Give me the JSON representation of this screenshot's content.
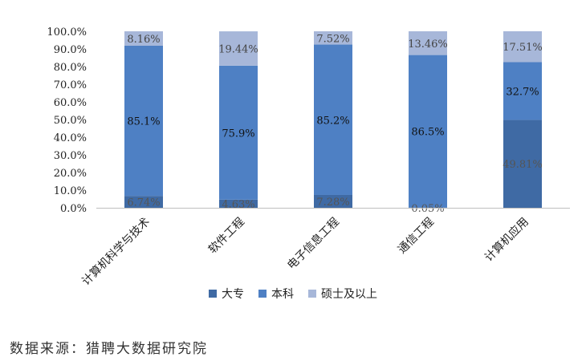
{
  "chart_data": {
    "type": "bar",
    "stacked": true,
    "categories": [
      "计算机科学与技术",
      "软件工程",
      "电子信息工程",
      "通信工程",
      "计算机应用"
    ],
    "series": [
      {
        "name": "大专",
        "values": [
          6.74,
          4.63,
          7.28,
          0.05,
          49.81
        ],
        "labels": [
          "6.74%",
          "4.63%",
          "7.28%",
          "0.05%",
          "49.81%"
        ],
        "color": "#3f6aa4",
        "label_color": "#555555"
      },
      {
        "name": "本科",
        "values": [
          85.1,
          75.9,
          85.2,
          86.5,
          32.7
        ],
        "labels": [
          "85.1%",
          "75.9%",
          "85.2%",
          "86.5%",
          "32.7%"
        ],
        "color": "#4e80c4",
        "label_color": "#111111"
      },
      {
        "name": "硕士及以上",
        "values": [
          8.16,
          19.44,
          7.52,
          13.46,
          17.51
        ],
        "labels": [
          "8.16%",
          "19.44%",
          "7.52%",
          "13.46%",
          "17.51%"
        ],
        "color": "#a7b7d9",
        "label_color": "#444444"
      }
    ],
    "y_ticks": [
      "0.0%",
      "10.0%",
      "20.0%",
      "30.0%",
      "40.0%",
      "50.0%",
      "60.0%",
      "70.0%",
      "80.0%",
      "90.0%",
      "100.0%"
    ],
    "ylim": [
      0,
      100
    ],
    "grid": false,
    "legend_position": "bottom"
  },
  "source_text": "数据来源：猎聘大数据研究院"
}
